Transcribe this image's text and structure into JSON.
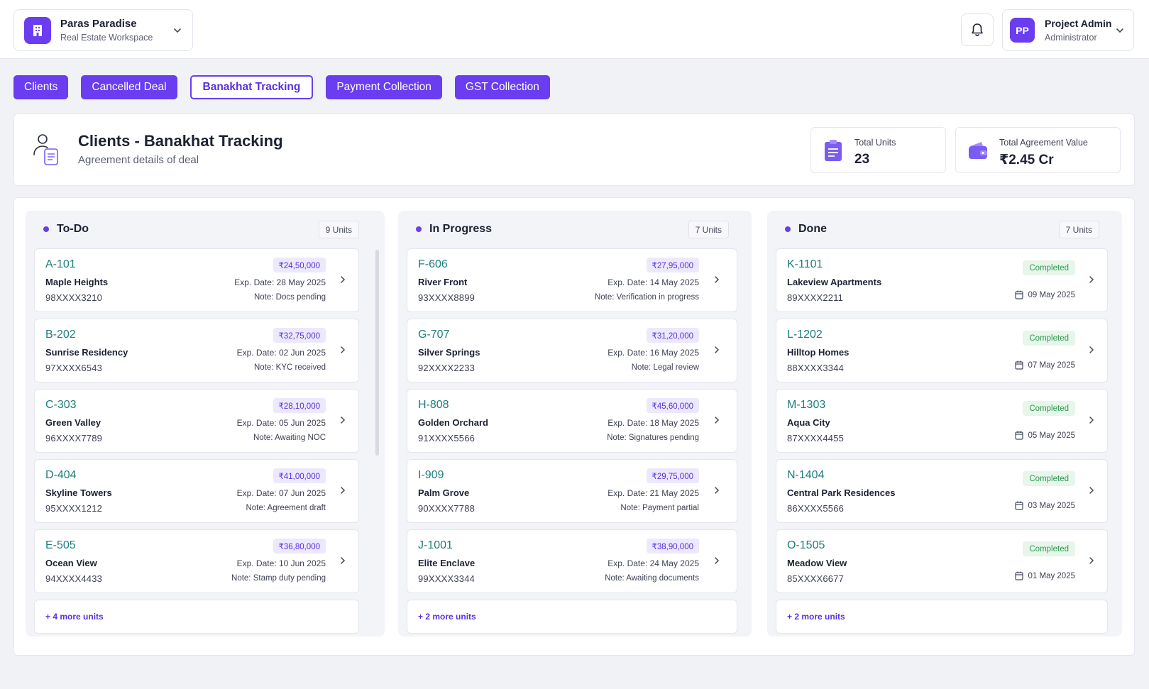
{
  "workspace": {
    "title": "Paras Paradise",
    "subtitle": "Real Estate Workspace"
  },
  "user": {
    "initials": "PP",
    "name": "Project Admin",
    "role": "Administrator"
  },
  "tabs": [
    "Clients",
    "Cancelled Deal",
    "Banakhat Tracking",
    "Payment Collection",
    "GST Collection"
  ],
  "active_tab": "Banakhat Tracking",
  "page": {
    "title": "Clients - Banakhat Tracking",
    "subtitle": "Agreement details of deal"
  },
  "stats": [
    {
      "label": "Total Units",
      "value": "23"
    },
    {
      "label": "Total Agreement Value",
      "value": "₹2.45 Cr"
    }
  ],
  "colors": {
    "accent": "#6a3df0",
    "unit_text": "#1d7d7a",
    "completed": "#2e9a4f"
  },
  "columns": [
    {
      "title": "To-Do",
      "units": "9 Units",
      "more": "+ 4 more units",
      "cards": [
        {
          "unit": "A-101",
          "project": "Maple Heights",
          "phone": "98XXXX3210",
          "amount": "₹24,50,000",
          "exp": "Exp. Date: 28 May 2025",
          "note": "Note: Docs pending"
        },
        {
          "unit": "B-202",
          "project": "Sunrise Residency",
          "phone": "97XXXX6543",
          "amount": "₹32,75,000",
          "exp": "Exp. Date: 02 Jun 2025",
          "note": "Note: KYC received"
        },
        {
          "unit": "C-303",
          "project": "Green Valley",
          "phone": "96XXXX7789",
          "amount": "₹28,10,000",
          "exp": "Exp. Date: 05 Jun 2025",
          "note": "Note: Awaiting NOC"
        },
        {
          "unit": "D-404",
          "project": "Skyline Towers",
          "phone": "95XXXX1212",
          "amount": "₹41,00,000",
          "exp": "Exp. Date: 07 Jun 2025",
          "note": "Note: Agreement draft"
        },
        {
          "unit": "E-505",
          "project": "Ocean View",
          "phone": "94XXXX4433",
          "amount": "₹36,80,000",
          "exp": "Exp. Date: 10 Jun 2025",
          "note": "Note: Stamp duty pending"
        }
      ]
    },
    {
      "title": "In Progress",
      "units": "7 Units",
      "more": "+ 2 more units",
      "cards": [
        {
          "unit": "F-606",
          "project": "River Front",
          "phone": "93XXXX8899",
          "amount": "₹27,95,000",
          "exp": "Exp. Date: 14 May 2025",
          "note": "Note: Verification in progress"
        },
        {
          "unit": "G-707",
          "project": "Silver Springs",
          "phone": "92XXXX2233",
          "amount": "₹31,20,000",
          "exp": "Exp. Date: 16 May 2025",
          "note": "Note: Legal review"
        },
        {
          "unit": "H-808",
          "project": "Golden Orchard",
          "phone": "91XXXX5566",
          "amount": "₹45,60,000",
          "exp": "Exp. Date: 18 May 2025",
          "note": "Note: Signatures pending"
        },
        {
          "unit": "I-909",
          "project": "Palm Grove",
          "phone": "90XXXX7788",
          "amount": "₹29,75,000",
          "exp": "Exp. Date: 21 May 2025",
          "note": "Note: Payment partial"
        },
        {
          "unit": "J-1001",
          "project": "Elite Enclave",
          "phone": "99XXXX3344",
          "amount": "₹38,90,000",
          "exp": "Exp. Date: 24 May 2025",
          "note": "Note: Awaiting documents"
        }
      ]
    },
    {
      "title": "Done",
      "units": "7 Units",
      "more": "+ 2 more units",
      "cards": [
        {
          "unit": "K-1101",
          "project": "Lakeview Apartments",
          "phone": "89XXXX2211",
          "status": "Completed",
          "date": "09 May 2025"
        },
        {
          "unit": "L-1202",
          "project": "Hilltop Homes",
          "phone": "88XXXX3344",
          "status": "Completed",
          "date": "07 May 2025"
        },
        {
          "unit": "M-1303",
          "project": "Aqua City",
          "phone": "87XXXX4455",
          "status": "Completed",
          "date": "05 May 2025"
        },
        {
          "unit": "N-1404",
          "project": "Central Park Residences",
          "phone": "86XXXX5566",
          "status": "Completed",
          "date": "03 May 2025"
        },
        {
          "unit": "O-1505",
          "project": "Meadow View",
          "phone": "85XXXX6677",
          "status": "Completed",
          "date": "01 May 2025"
        }
      ]
    }
  ]
}
